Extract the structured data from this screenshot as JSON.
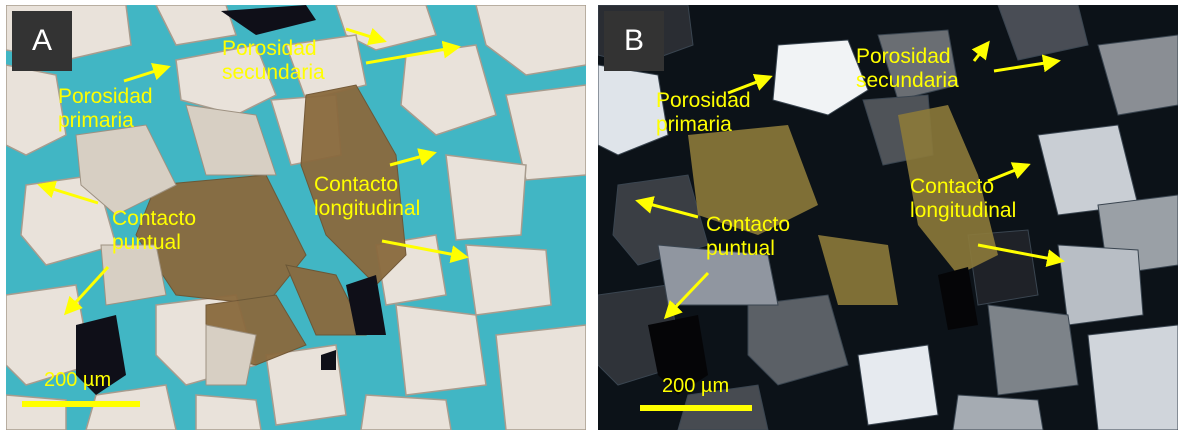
{
  "panel_a": {
    "tag": "A",
    "labels": {
      "porosidad_primaria_1": "Porosidad",
      "porosidad_primaria_2": "primaria",
      "porosidad_secundaria_1": "Porosidad",
      "porosidad_secundaria_2": "secundaria",
      "contacto_longitudinal_1": "Contacto",
      "contacto_longitudinal_2": "longitudinal",
      "contacto_puntual_1": "Contacto",
      "contacto_puntual_2": "puntual"
    },
    "scale_label": "200 µm"
  },
  "panel_b": {
    "tag": "B",
    "labels": {
      "porosidad_primaria_1": "Porosidad",
      "porosidad_primaria_2": "primaria",
      "porosidad_secundaria_1": "Porosidad",
      "porosidad_secundaria_2": "secundaria",
      "contacto_longitudinal_1": "Contacto",
      "contacto_longitudinal_2": "longitudinal",
      "contacto_puntual_1": "Contacto",
      "contacto_puntual_2": "puntual"
    },
    "scale_label": "200 µm"
  },
  "colors": {
    "annotation": "#ffff00",
    "pore_blue": "#3fb7c4",
    "tag_bg": "#333333"
  }
}
